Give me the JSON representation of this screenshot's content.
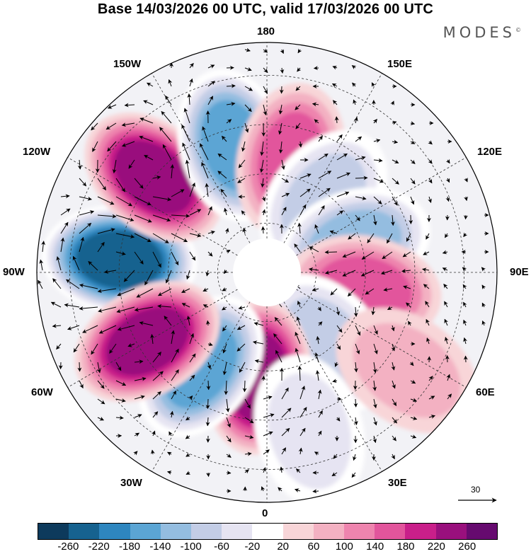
{
  "title": "Base 14/03/2026 00 UTC, valid 17/03/2026 00 UTC",
  "brand": "MODES",
  "brand_mark": "©",
  "longitude_labels": {
    "top": "180",
    "bottom": "0",
    "left": "90W",
    "right": "90E",
    "upper_left_1": "150W",
    "upper_left_2": "120W",
    "upper_right_1": "150E",
    "upper_right_2": "120E",
    "lower_left_1": "60W",
    "lower_left_2": "30W",
    "lower_right_1": "60E",
    "lower_right_2": "30E"
  },
  "reference_vector": "30",
  "colorbar": {
    "colors": [
      "#0d3a5c",
      "#16628f",
      "#2e86bf",
      "#5ba5d4",
      "#94bde0",
      "#c3cde6",
      "#e6e4f2",
      "#ffffff",
      "#f8d5d8",
      "#f3b1c2",
      "#ee84ae",
      "#e2559c",
      "#c91f8a",
      "#99107d",
      "#660a6f"
    ],
    "labels": [
      "-260",
      "-220",
      "-180",
      "-140",
      "-100",
      "-60",
      "-20",
      "20",
      "60",
      "100",
      "140",
      "180",
      "220",
      "260"
    ]
  },
  "anomaly_centers": [
    {
      "sign": "negative",
      "value": -270,
      "lon": -95,
      "lat": 45
    },
    {
      "sign": "positive",
      "value": 230,
      "lon": -130,
      "lat": 45
    },
    {
      "sign": "negative",
      "value": -170,
      "lon": -165,
      "lat": 50
    },
    {
      "sign": "positive",
      "value": 140,
      "lon": 168,
      "lat": 55
    },
    {
      "sign": "negative",
      "value": -100,
      "lon": 142,
      "lat": 62
    },
    {
      "sign": "negative",
      "value": -130,
      "lon": 108,
      "lat": 62
    },
    {
      "sign": "positive",
      "value": 120,
      "lon": 80,
      "lat": 60
    },
    {
      "sign": "negative",
      "value": -110,
      "lon": 40,
      "lat": 62
    },
    {
      "sign": "positive",
      "value": 60,
      "lon": 55,
      "lat": 38
    },
    {
      "sign": "positive",
      "value": 200,
      "lon": -5,
      "lat": 58
    },
    {
      "sign": "negative",
      "value": -160,
      "lon": -35,
      "lat": 55
    },
    {
      "sign": "positive",
      "value": 210,
      "lon": -60,
      "lat": 48
    },
    {
      "sign": "negative",
      "value": -60,
      "lon": 15,
      "lat": 40
    }
  ]
}
